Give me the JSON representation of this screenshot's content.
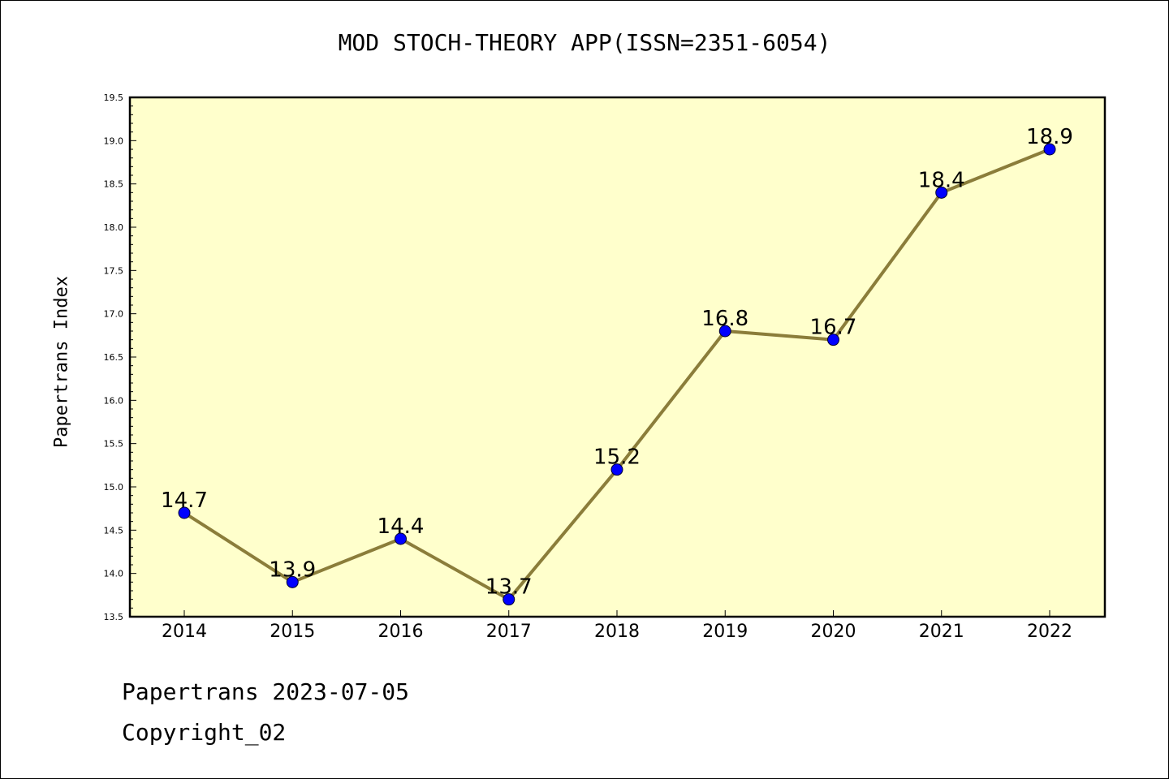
{
  "chart_data": {
    "type": "line",
    "title": "MOD STOCH-THEORY APP(ISSN=2351-6054)",
    "xlabel": "",
    "ylabel": "Papertrans Index",
    "categories": [
      "2014",
      "2015",
      "2016",
      "2017",
      "2018",
      "2019",
      "2020",
      "2021",
      "2022"
    ],
    "values": [
      14.7,
      13.9,
      14.4,
      13.7,
      15.2,
      16.8,
      16.7,
      18.4,
      18.9
    ],
    "data_labels": [
      "14.7",
      "13.9",
      "14.4",
      "13.7",
      "15.2",
      "16.8",
      "16.7",
      "18.4",
      "18.9"
    ],
    "ylim": [
      13.5,
      19.5
    ],
    "yticks": [
      "13.5",
      "14.0",
      "14.5",
      "15.0",
      "15.5",
      "16.0",
      "16.5",
      "17.0",
      "17.5",
      "18.0",
      "18.5",
      "19.0",
      "19.5"
    ],
    "grid": false,
    "legend": "none",
    "colors": {
      "plot_background": "#ffffcc",
      "line": "#8b7d3a",
      "marker": "#0000ff",
      "axis": "#000000"
    }
  },
  "footer": {
    "line1": "Papertrans 2023-07-05",
    "line2": "Copyright_02"
  }
}
